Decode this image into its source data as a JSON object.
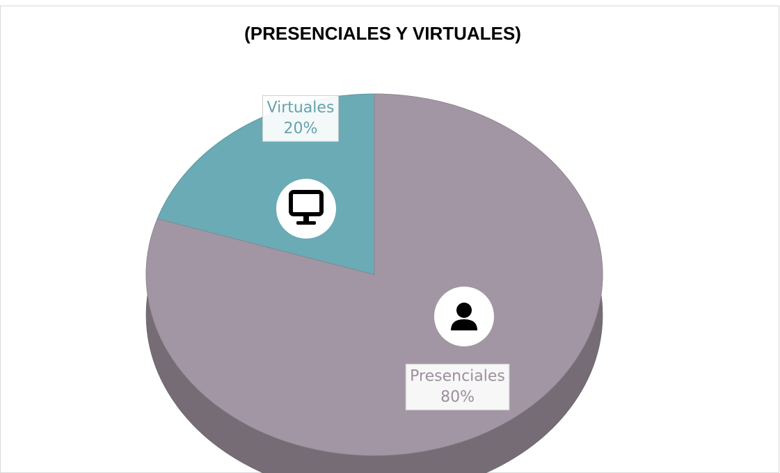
{
  "chart_data": {
    "type": "pie",
    "title": "(PRESENCIALES Y VIRTUALES)",
    "categories": [
      "Virtuales",
      "Presenciales"
    ],
    "values": [
      20,
      80
    ],
    "value_labels": [
      "20%",
      "80%"
    ],
    "colors": [
      "#6aabb5",
      "#a396a4"
    ]
  }
}
